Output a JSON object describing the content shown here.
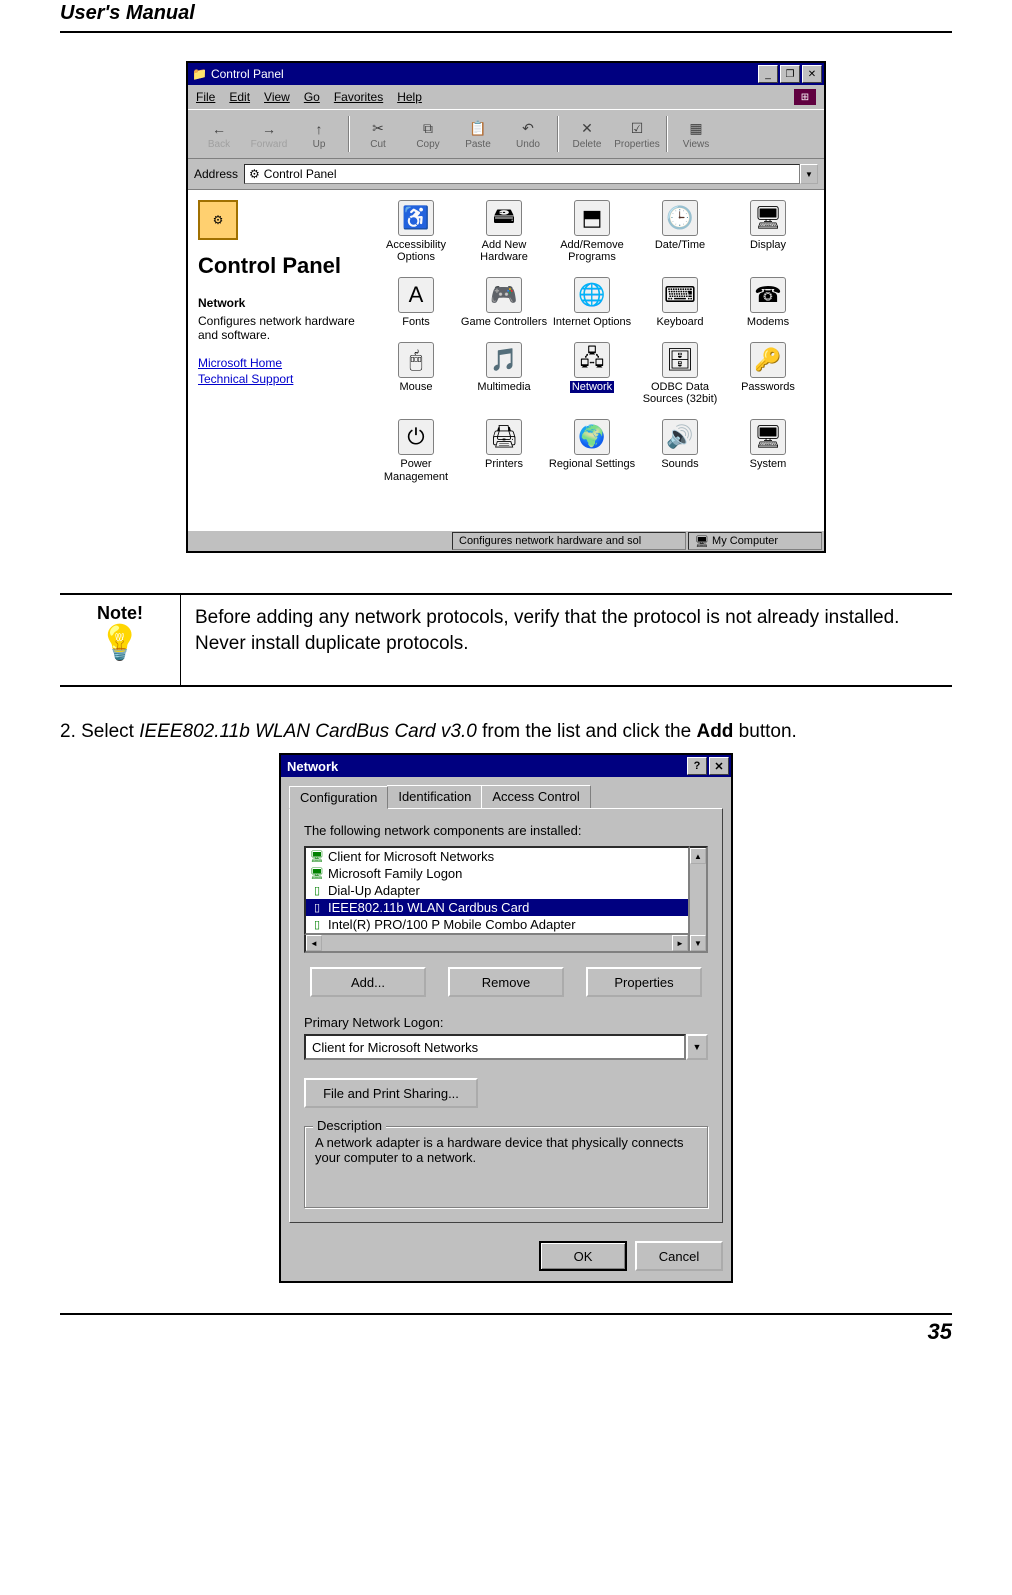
{
  "header": {
    "title": "User's Manual"
  },
  "footer": {
    "page": "35"
  },
  "note": {
    "label": "Note!",
    "text": "Before adding any network protocols, verify that the protocol is not already installed. Never install duplicate protocols."
  },
  "step2": {
    "prefix": "2.  Select ",
    "italic": "IEEE802.11b WLAN CardBus Card v3.0",
    "mid": " from the list and click the ",
    "bold": "Add",
    "suffix": " button."
  },
  "cp": {
    "window_title": "Control Panel",
    "menus": [
      "File",
      "Edit",
      "View",
      "Go",
      "Favorites",
      "Help"
    ],
    "toolbar": [
      {
        "label": "Back",
        "glyph": "←",
        "disabled": true
      },
      {
        "label": "Forward",
        "glyph": "→",
        "disabled": true
      },
      {
        "label": "Up",
        "glyph": "↑",
        "disabled": false
      },
      {
        "label": "Cut",
        "glyph": "✂",
        "disabled": false
      },
      {
        "label": "Copy",
        "glyph": "⧉",
        "disabled": false
      },
      {
        "label": "Paste",
        "glyph": "📋",
        "disabled": false
      },
      {
        "label": "Undo",
        "glyph": "↶",
        "disabled": false
      },
      {
        "label": "Delete",
        "glyph": "✕",
        "disabled": false
      },
      {
        "label": "Properties",
        "glyph": "☑",
        "disabled": false
      },
      {
        "label": "Views",
        "glyph": "▦",
        "disabled": false
      }
    ],
    "address_label": "Address",
    "address_value": "Control Panel",
    "side": {
      "title": "Control Panel",
      "heading": "Network",
      "desc": "Configures network hardware and software.",
      "links": [
        "Microsoft Home",
        "Technical Support"
      ]
    },
    "grid": [
      [
        {
          "label": "Accessibility Options",
          "glyph": "♿"
        },
        {
          "label": "Add New Hardware",
          "glyph": "🖴"
        },
        {
          "label": "Add/Remove Programs",
          "glyph": "⬒"
        },
        {
          "label": "Date/Time",
          "glyph": "🕒"
        },
        {
          "label": "Display",
          "glyph": "🖥"
        }
      ],
      [
        {
          "label": "Fonts",
          "glyph": "A"
        },
        {
          "label": "Game Controllers",
          "glyph": "🎮"
        },
        {
          "label": "Internet Options",
          "glyph": "🌐"
        },
        {
          "label": "Keyboard",
          "glyph": "⌨"
        },
        {
          "label": "Modems",
          "glyph": "☎"
        }
      ],
      [
        {
          "label": "Mouse",
          "glyph": "🖱"
        },
        {
          "label": "Multimedia",
          "glyph": "🎵"
        },
        {
          "label": "Network",
          "glyph": "🖧",
          "selected": true
        },
        {
          "label": "ODBC Data Sources (32bit)",
          "glyph": "🗄"
        },
        {
          "label": "Passwords",
          "glyph": "🔑"
        }
      ],
      [
        {
          "label": "Power Management",
          "glyph": "⏻"
        },
        {
          "label": "Printers",
          "glyph": "🖨"
        },
        {
          "label": "Regional Settings",
          "glyph": "🌍"
        },
        {
          "label": "Sounds",
          "glyph": "🔊"
        },
        {
          "label": "System",
          "glyph": "🖥"
        }
      ]
    ],
    "status_left": "Configures network hardware and sol",
    "status_right": "My Computer"
  },
  "net": {
    "title": "Network",
    "tabs": [
      "Configuration",
      "Identification",
      "Access Control"
    ],
    "installed_label": "The following network components are installed:",
    "list": [
      {
        "label": "Client for Microsoft Networks",
        "icon": "🖥"
      },
      {
        "label": "Microsoft Family Logon",
        "icon": "🖥"
      },
      {
        "label": "Dial-Up Adapter",
        "icon": "▯"
      },
      {
        "label": "IEEE802.11b WLAN Cardbus Card",
        "icon": "▯",
        "selected": true
      },
      {
        "label": "Intel(R) PRO/100 P Mobile Combo Adapter",
        "icon": "▯"
      }
    ],
    "buttons": {
      "add": "Add...",
      "remove": "Remove",
      "properties": "Properties"
    },
    "primary_label": "Primary Network Logon:",
    "primary_value": "Client for Microsoft Networks",
    "fps_button": "File and Print Sharing...",
    "desc_legend": "Description",
    "desc_text": "A network adapter is a hardware device that physically connects your computer to a network.",
    "ok": "OK",
    "cancel": "Cancel"
  },
  "colors": {
    "titlebar": "#000080",
    "dialog_bg": "#c0c0c0",
    "selection": "#000080",
    "link": "#0000cc",
    "page_bg": "#ffffff"
  }
}
